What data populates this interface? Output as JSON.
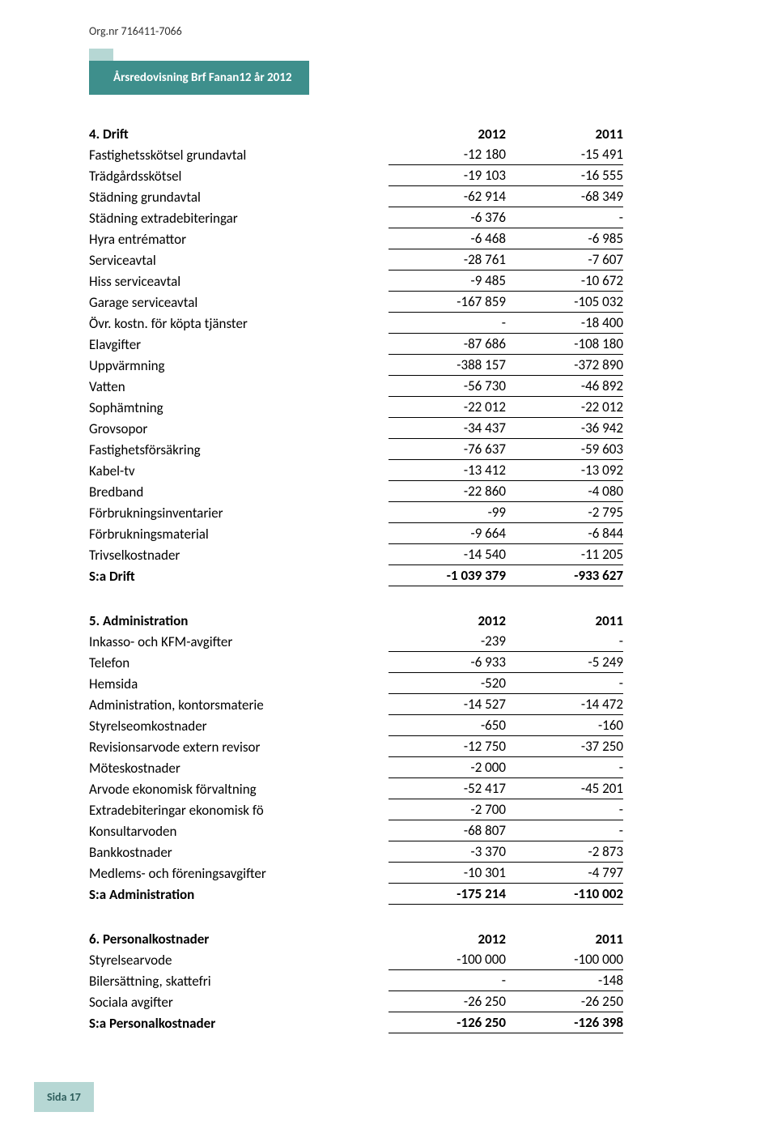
{
  "org_nr": "Org.nr 716411-7066",
  "header_title": "Årsredovisning Brf Fanan12 år 2012",
  "colors": {
    "teal": "#3e8f8c",
    "light_teal": "#b6d7d4",
    "text_on_teal": "#ffffff",
    "dark_teal_text": "#2f5f5d",
    "body_text": "#000000",
    "background": "#ffffff",
    "border": "#000000"
  },
  "fonts": {
    "body_family": "Calibri, Arial, sans-serif",
    "row_size_pt": 13,
    "header_size_pt": 11,
    "org_size_pt": 10
  },
  "sections": [
    {
      "heading": "4. Drift",
      "year1": "2012",
      "year2": "2011",
      "total_label": "S:a Drift",
      "total_val1": "-1 039 379",
      "total_val2": "-933 627",
      "rows": [
        {
          "label": "Fastighetsskötsel grundavtal",
          "v1": "-12 180",
          "v2": "-15 491"
        },
        {
          "label": "Trädgårdsskötsel",
          "v1": "-19 103",
          "v2": "-16 555"
        },
        {
          "label": "Städning grundavtal",
          "v1": "-62 914",
          "v2": "-68 349"
        },
        {
          "label": "Städning extradebiteringar",
          "v1": "-6 376",
          "v2": "-"
        },
        {
          "label": "Hyra entrémattor",
          "v1": "-6 468",
          "v2": "-6 985"
        },
        {
          "label": "Serviceavtal",
          "v1": "-28 761",
          "v2": "-7 607"
        },
        {
          "label": "Hiss serviceavtal",
          "v1": "-9 485",
          "v2": "-10 672"
        },
        {
          "label": "Garage serviceavtal",
          "v1": "-167 859",
          "v2": "-105 032"
        },
        {
          "label": "Övr. kostn. för köpta tjänster",
          "v1": "-",
          "v2": "-18 400"
        },
        {
          "label": "Elavgifter",
          "v1": "-87 686",
          "v2": "-108 180"
        },
        {
          "label": "Uppvärmning",
          "v1": "-388 157",
          "v2": "-372 890"
        },
        {
          "label": "Vatten",
          "v1": "-56 730",
          "v2": "-46 892"
        },
        {
          "label": "Sophämtning",
          "v1": "-22 012",
          "v2": "-22 012"
        },
        {
          "label": "Grovsopor",
          "v1": "-34 437",
          "v2": "-36 942"
        },
        {
          "label": "Fastighetsförsäkring",
          "v1": "-76 637",
          "v2": "-59 603"
        },
        {
          "label": "Kabel-tv",
          "v1": "-13 412",
          "v2": "-13 092"
        },
        {
          "label": "Bredband",
          "v1": "-22 860",
          "v2": "-4 080"
        },
        {
          "label": "Förbrukningsinventarier",
          "v1": "-99",
          "v2": "-2 795"
        },
        {
          "label": "Förbrukningsmaterial",
          "v1": "-9 664",
          "v2": "-6 844"
        },
        {
          "label": "Trivselkostnader",
          "v1": "-14 540",
          "v2": "-11 205"
        }
      ]
    },
    {
      "heading": "5. Administration",
      "year1": "2012",
      "year2": "2011",
      "total_label": "S:a Administration",
      "total_val1": "-175 214",
      "total_val2": "-110 002",
      "rows": [
        {
          "label": "Inkasso- och KFM-avgifter",
          "v1": "-239",
          "v2": "-"
        },
        {
          "label": "Telefon",
          "v1": "-6 933",
          "v2": "-5 249"
        },
        {
          "label": "Hemsida",
          "v1": "-520",
          "v2": "-"
        },
        {
          "label": "Administration, kontorsmaterie",
          "v1": "-14 527",
          "v2": "-14 472"
        },
        {
          "label": "Styrelseomkostnader",
          "v1": "-650",
          "v2": "-160"
        },
        {
          "label": "Revisionsarvode extern revisor",
          "v1": "-12 750",
          "v2": "-37 250"
        },
        {
          "label": "Möteskostnader",
          "v1": "-2 000",
          "v2": "-"
        },
        {
          "label": "Arvode ekonomisk förvaltning",
          "v1": "-52 417",
          "v2": "-45 201"
        },
        {
          "label": "Extradebiteringar ekonomisk fö",
          "v1": "-2 700",
          "v2": "-"
        },
        {
          "label": "Konsultarvoden",
          "v1": "-68 807",
          "v2": "-"
        },
        {
          "label": "Bankkostnader",
          "v1": "-3 370",
          "v2": "-2 873"
        },
        {
          "label": "Medlems- och föreningsavgifter",
          "v1": "-10 301",
          "v2": "-4 797"
        }
      ]
    },
    {
      "heading": "6. Personalkostnader",
      "year1": "2012",
      "year2": "2011",
      "total_label": "S:a Personalkostnader",
      "total_val1": "-126 250",
      "total_val2": "-126 398",
      "rows": [
        {
          "label": "Styrelsearvode",
          "v1": "-100 000",
          "v2": "-100 000"
        },
        {
          "label": "Bilersättning, skattefri",
          "v1": "-",
          "v2": "-148"
        },
        {
          "label": "Sociala avgifter",
          "v1": "-26 250",
          "v2": "-26 250"
        }
      ]
    }
  ],
  "footer": "Sida 17"
}
